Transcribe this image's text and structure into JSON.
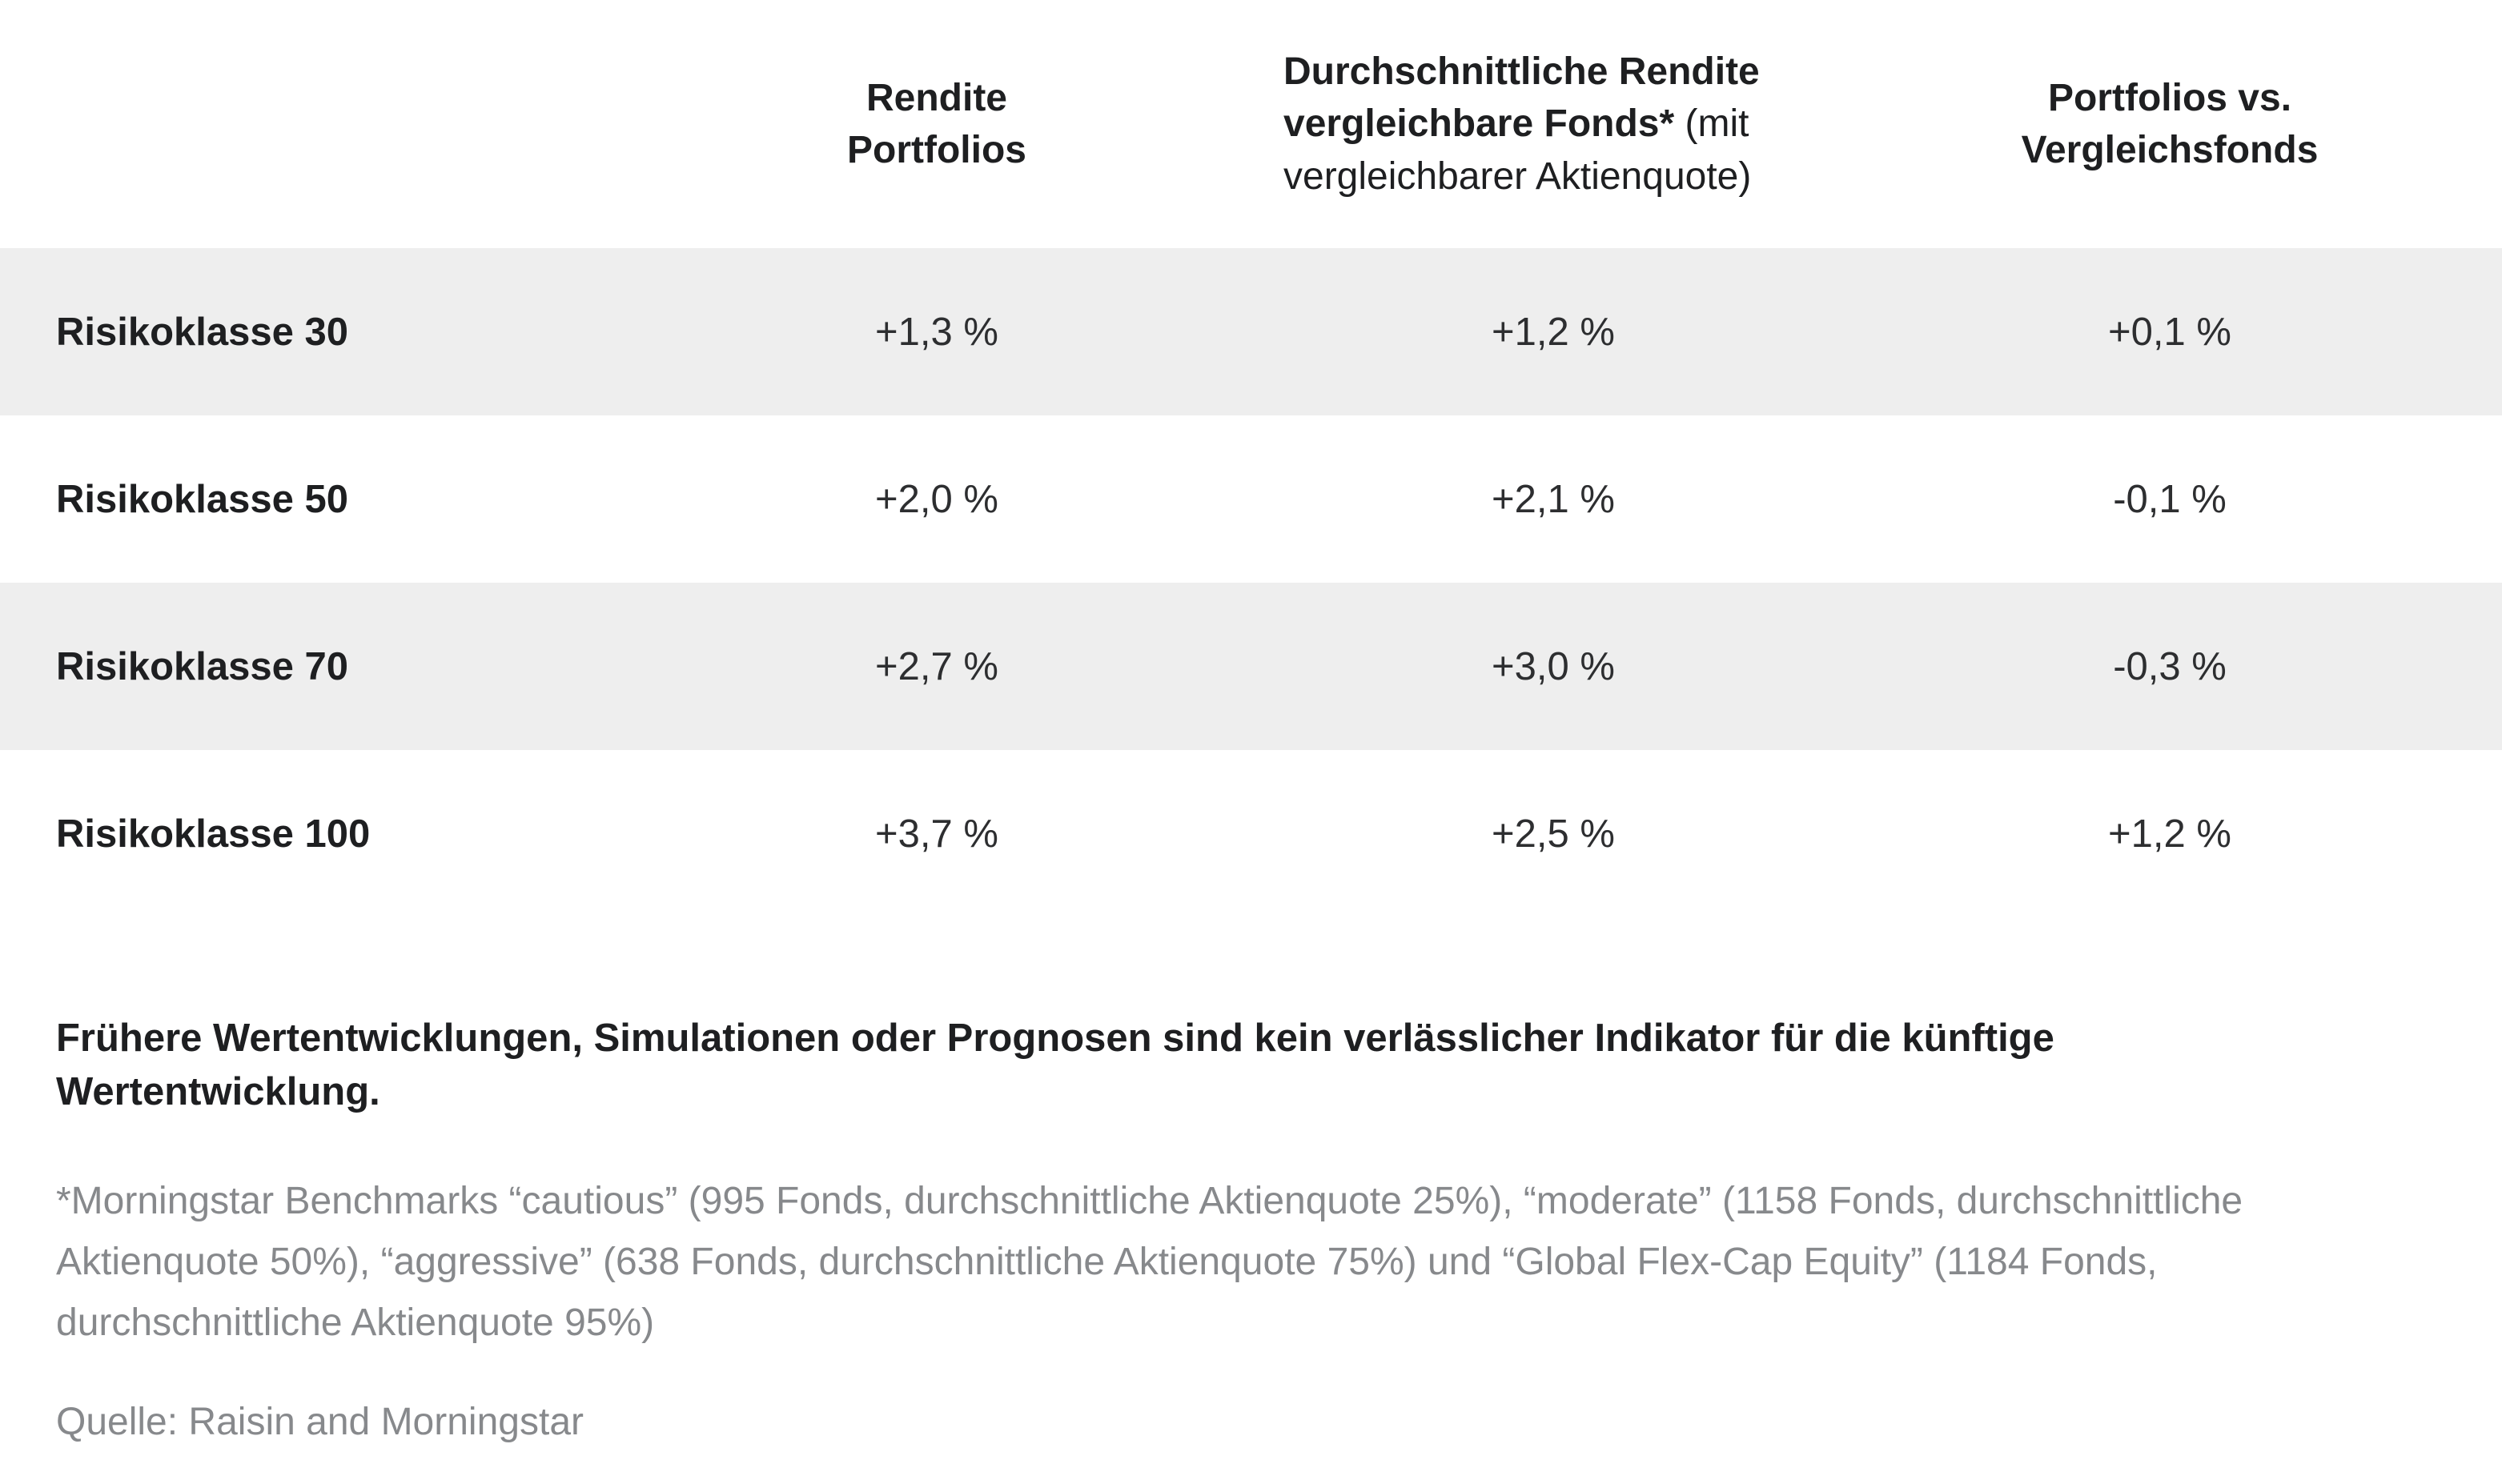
{
  "chart_data": {
    "type": "table",
    "title": "",
    "headers": {
      "col1": "",
      "col2": "Rendite Portfolios",
      "col3_bold": "Durchschnittliche Rendite vergleichbare Fonds*",
      "col3_regular": "(mit vergleichbarer Aktienquote)",
      "col4": "Portfolios vs. Vergleichsfonds"
    },
    "rows": [
      {
        "label": "Risikoklasse 30",
        "values": [
          "+1,3 %",
          "+1,2 %",
          "+0,1 %"
        ]
      },
      {
        "label": "Risikoklasse 50",
        "values": [
          "+2,0 %",
          "+2,1 %",
          "-0,1 %"
        ]
      },
      {
        "label": "Risikoklasse 70",
        "values": [
          "+2,7 %",
          "+3,0 %",
          "-0,3 %"
        ]
      },
      {
        "label": "Risikoklasse 100",
        "values": [
          "+3,7 %",
          "+2,5 %",
          "+1,2 %"
        ]
      }
    ],
    "layout": {
      "striped_rows": [
        0,
        2
      ],
      "value_alignment": "center",
      "grid": "off",
      "legend": "none"
    }
  },
  "notes": {
    "disclaimer": "Frühere Wertentwicklungen, Simulationen oder Prognosen sind kein verlässlicher Indikator für die künftige Wertentwicklung.",
    "footnote": "*Morningstar Benchmarks “cautious” (995 Fonds, durchschnittliche Aktienquote 25%), “moderate” (1158 Fonds, durchschnittliche Aktienquote 50%), “aggressive” (638 Fonds, durchschnittliche Aktienquote 75%) und “Global Flex-Cap Equity” (1184 Fonds, durchschnittliche Aktienquote 95%)",
    "source": "Quelle: Raisin and Morningstar"
  },
  "colors": {
    "stripe": "#eeeeee",
    "text": "#1e1f21",
    "muted": "#87898c",
    "background": "#ffffff"
  }
}
